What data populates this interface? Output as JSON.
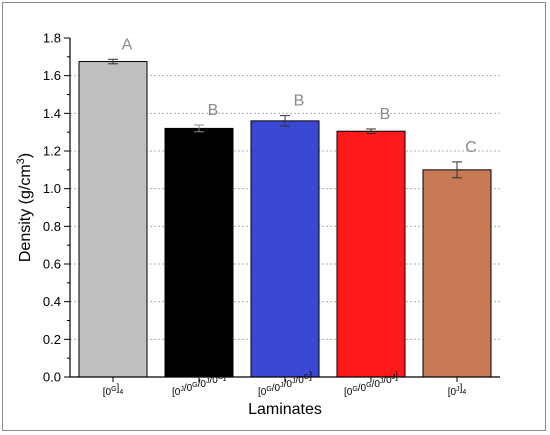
{
  "chart_data": {
    "type": "bar",
    "title": "",
    "xlabel": "Laminates",
    "ylabel": "Density (g/cm",
    "ylabel_sup": "3",
    "ylabel_close": ")",
    "ylim": [
      0,
      1.8
    ],
    "yticks": [
      "0.0",
      "0.2",
      "0.4",
      "0.6",
      "0.8",
      "1.0",
      "1.2",
      "1.4",
      "1.6",
      "1.8"
    ],
    "grid": "horizontal dotted",
    "categories": [
      {
        "base": "[0",
        "sup": "G",
        "rest": "]",
        "sub": "4"
      },
      {
        "base": "[0",
        "sup": "J",
        "rest": "/0",
        "sup2": "G",
        "rest2": "/0",
        "sup3": "J",
        "rest3": "/0",
        "sup4": "G",
        "rest4": "]"
      },
      {
        "base": "[0",
        "sup": "G",
        "rest": "/0",
        "sup2": "J",
        "rest2": "/0",
        "sup3": "J",
        "rest3": "/0",
        "sup4": "G",
        "rest4": "]"
      },
      {
        "base": "[0",
        "sup": "G",
        "rest": "/0",
        "sup2": "G",
        "rest2": "/0",
        "sup3": "J",
        "rest3": "/0",
        "sup4": "J",
        "rest4": "]"
      },
      {
        "base": "[0",
        "sup": "J",
        "rest": "]",
        "sub": "4"
      }
    ],
    "values": [
      1.675,
      1.32,
      1.36,
      1.305,
      1.1
    ],
    "errors": [
      0.012,
      0.018,
      0.028,
      0.012,
      0.042
    ],
    "colors": [
      "#c0c0c0",
      "#000000",
      "#3a48d4",
      "#ff1a1a",
      "#c87a55"
    ],
    "letters": [
      "A",
      "B",
      "B",
      "B",
      "C"
    ]
  }
}
